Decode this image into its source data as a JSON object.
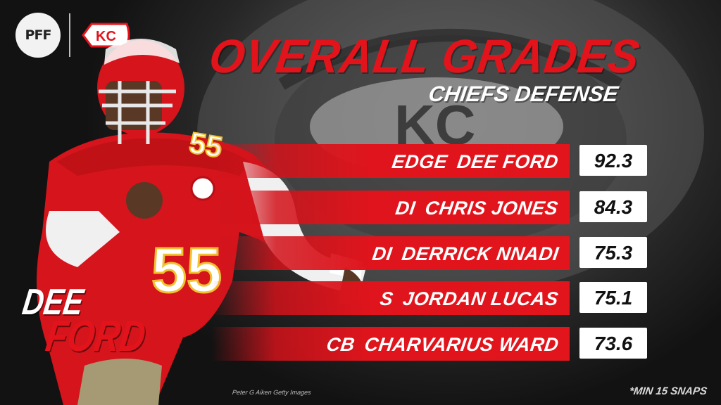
{
  "header": {
    "logos": [
      "pff-logo",
      "kc-chiefs-logo"
    ],
    "pff_text": "PFF",
    "kc_text": "KC"
  },
  "title": "OVERALL GRADES",
  "subtitle": "CHIEFS DEFENSE",
  "players": [
    {
      "position": "EDGE",
      "name": "DEE FORD",
      "grade": "92.3"
    },
    {
      "position": "DI",
      "name": "CHRIS JONES",
      "grade": "84.3"
    },
    {
      "position": "DI",
      "name": "DERRICK NNADI",
      "grade": "75.3"
    },
    {
      "position": "S",
      "name": "JORDAN LUCAS",
      "grade": "75.1"
    },
    {
      "position": "CB",
      "name": "CHARVARIUS WARD",
      "grade": "73.6"
    }
  ],
  "featured_player": {
    "first": "DEE",
    "last": "FORD",
    "jersey_number": "55"
  },
  "photo_credit": "Peter G Aiken Getty Images",
  "footnote": "*MIN 15 SNAPS",
  "colors": {
    "accent_red": "#e3131b",
    "background": "#141414",
    "grade_box": "#ffffff"
  }
}
